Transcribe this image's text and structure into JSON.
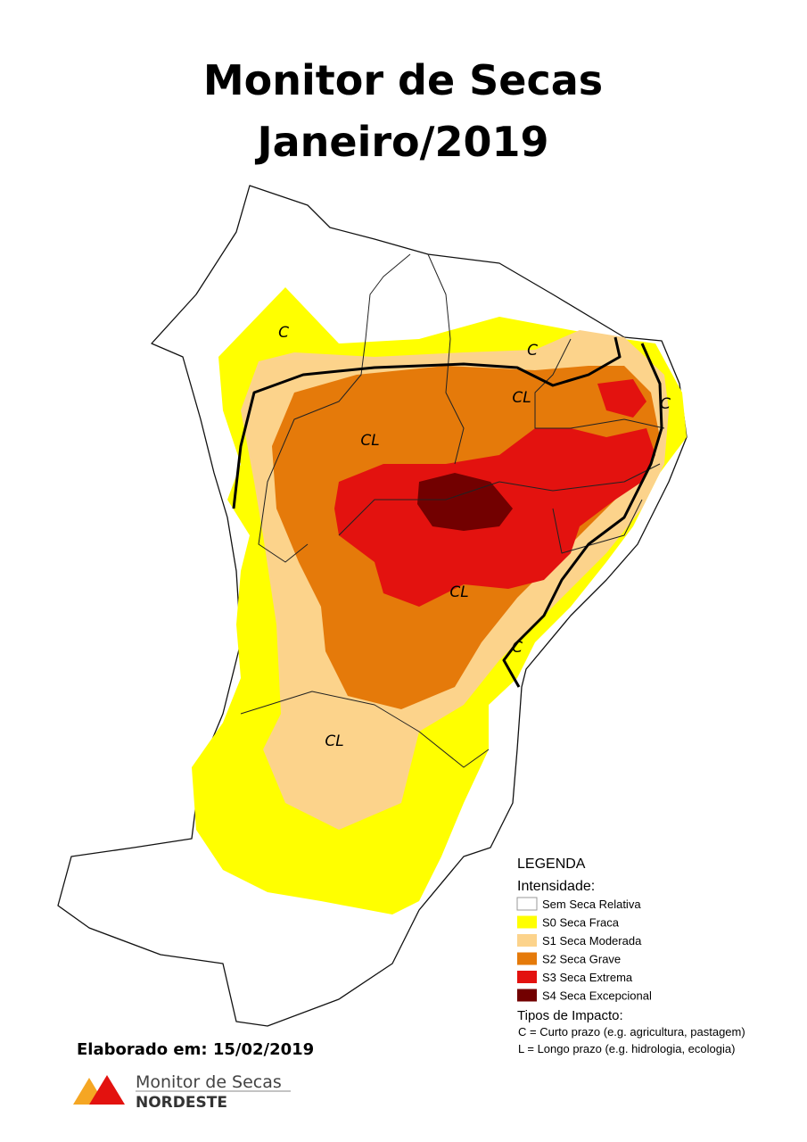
{
  "title": [
    "Monitor de Secas",
    "Janeiro/2019"
  ],
  "map_labels": [
    "C",
    "C",
    "CL",
    "C",
    "CL",
    "CL",
    "CL",
    "C"
  ],
  "legend": {
    "title": "LEGENDA",
    "intensity_title": "Intensidade:",
    "items": [
      {
        "label": "Sem Seca Relativa",
        "color": "#ffffff"
      },
      {
        "label": "S0 Seca Fraca",
        "color": "#ffff00"
      },
      {
        "label": "S1 Seca Moderada",
        "color": "#fcd38b"
      },
      {
        "label": "S2 Seca Grave",
        "color": "#e57a0a"
      },
      {
        "label": "S3 Seca Extrema",
        "color": "#e3120f"
      },
      {
        "label": "S4 Seca Excepcional",
        "color": "#720000"
      }
    ],
    "impact_title": "Tipos de Impacto:",
    "impacts": [
      "C = Curto prazo (e.g. agricultura, pastagem)",
      "L = Longo prazo (e.g. hidrologia, ecologia)"
    ]
  },
  "footer": {
    "date": "Elaborado em: 15/02/2019",
    "logo_line1": "Monitor de Secas",
    "logo_line2": "NORDESTE"
  }
}
